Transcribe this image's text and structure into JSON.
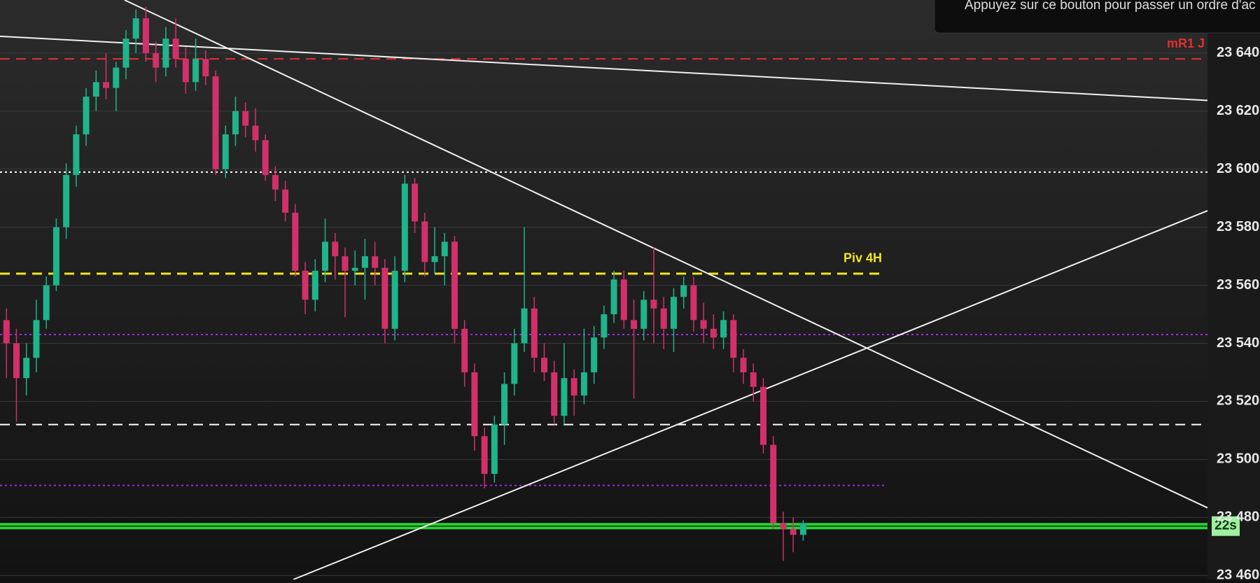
{
  "chart_data": {
    "type": "candlestick",
    "candles": [
      [
        23548,
        23552,
        23528,
        23540
      ],
      [
        23540,
        23545,
        23513,
        23528
      ],
      [
        23528,
        23540,
        23522,
        23535
      ],
      [
        23535,
        23555,
        23530,
        23548
      ],
      [
        23548,
        23563,
        23545,
        23560
      ],
      [
        23560,
        23583,
        23558,
        23580
      ],
      [
        23580,
        23602,
        23576,
        23598
      ],
      [
        23598,
        23615,
        23594,
        23612
      ],
      [
        23612,
        23628,
        23608,
        23625
      ],
      [
        23625,
        23634,
        23620,
        23630
      ],
      [
        23630,
        23640,
        23624,
        23628
      ],
      [
        23628,
        23637,
        23620,
        23635
      ],
      [
        23635,
        23648,
        23631,
        23645
      ],
      [
        23645,
        23655,
        23640,
        23652
      ],
      [
        23652,
        23656,
        23637,
        23640
      ],
      [
        23640,
        23644,
        23630,
        23635
      ],
      [
        23635,
        23649,
        23632,
        23645
      ],
      [
        23645,
        23652,
        23635,
        23638
      ],
      [
        23638,
        23642,
        23626,
        23630
      ],
      [
        23630,
        23645,
        23627,
        23638
      ],
      [
        23638,
        23641,
        23629,
        23632
      ],
      [
        23632,
        23634,
        23598,
        23600
      ],
      [
        23600,
        23615,
        23597,
        23612
      ],
      [
        23612,
        23625,
        23608,
        23620
      ],
      [
        23620,
        23623,
        23611,
        23615
      ],
      [
        23615,
        23621,
        23606,
        23610
      ],
      [
        23610,
        23612,
        23596,
        23598
      ],
      [
        23598,
        23601,
        23589,
        23593
      ],
      [
        23593,
        23596,
        23582,
        23585
      ],
      [
        23585,
        23588,
        23563,
        23565
      ],
      [
        23565,
        23568,
        23550,
        23555
      ],
      [
        23555,
        23569,
        23551,
        23565
      ],
      [
        23565,
        23583,
        23561,
        23575
      ],
      [
        23575,
        23578,
        23562,
        23570
      ],
      [
        23570,
        23573,
        23549,
        23565
      ],
      [
        23565,
        23572,
        23560,
        23566
      ],
      [
        23566,
        23576,
        23555,
        23570
      ],
      [
        23570,
        23575,
        23560,
        23566
      ],
      [
        23566,
        23569,
        23540,
        23545
      ],
      [
        23545,
        23570,
        23541,
        23565
      ],
      [
        23565,
        23598,
        23561,
        23595
      ],
      [
        23595,
        23597,
        23578,
        23582
      ],
      [
        23582,
        23585,
        23563,
        23568
      ],
      [
        23568,
        23580,
        23564,
        23570
      ],
      [
        23570,
        23578,
        23560,
        23575
      ],
      [
        23575,
        23577,
        23540,
        23545
      ],
      [
        23545,
        23548,
        23525,
        23530
      ],
      [
        23530,
        23533,
        23503,
        23508
      ],
      [
        23508,
        23511,
        23490,
        23495
      ],
      [
        23495,
        23515,
        23492,
        23512
      ],
      [
        23512,
        23530,
        23505,
        23526
      ],
      [
        23526,
        23545,
        23522,
        23540
      ],
      [
        23540,
        23580,
        23537,
        23552
      ],
      [
        23552,
        23556,
        23530,
        23535
      ],
      [
        23535,
        23540,
        23527,
        23530
      ],
      [
        23530,
        23534,
        23512,
        23515
      ],
      [
        23515,
        23540,
        23512,
        23528
      ],
      [
        23528,
        23531,
        23515,
        23522
      ],
      [
        23522,
        23545,
        23519,
        23530
      ],
      [
        23530,
        23546,
        23526,
        23542
      ],
      [
        23542,
        23553,
        23538,
        23550
      ],
      [
        23550,
        23565,
        23547,
        23562
      ],
      [
        23562,
        23565,
        23545,
        23548
      ],
      [
        23548,
        23555,
        23521,
        23545
      ],
      [
        23545,
        23558,
        23541,
        23555
      ],
      [
        23555,
        23573,
        23540,
        23552
      ],
      [
        23552,
        23556,
        23538,
        23545
      ],
      [
        23545,
        23559,
        23537,
        23556
      ],
      [
        23556,
        23563,
        23552,
        23560
      ],
      [
        23560,
        23563,
        23544,
        23548
      ],
      [
        23548,
        23554,
        23540,
        23545
      ],
      [
        23545,
        23550,
        23538,
        23542
      ],
      [
        23542,
        23551,
        23538,
        23548
      ],
      [
        23548,
        23550,
        23530,
        23535
      ],
      [
        23535,
        23538,
        23526,
        23530
      ],
      [
        23530,
        23533,
        23520,
        23525
      ],
      [
        23525,
        23528,
        23502,
        23505
      ],
      [
        23505,
        23508,
        23476,
        23478
      ],
      [
        23478,
        23482,
        23465,
        23476
      ],
      [
        23476,
        23480,
        23468,
        23474
      ],
      [
        23474,
        23479,
        23472,
        23478
      ]
    ],
    "up_color": "#1fb48a",
    "down_color": "#d2306a",
    "xlim": [
      -0.65,
      120.6
    ],
    "ylim": [
      23458.6,
      23658.3
    ],
    "yticks": [
      {
        "value": 23460,
        "label": "23 460"
      },
      {
        "value": 23480,
        "label": "23 480"
      },
      {
        "value": 23500,
        "label": "23 500"
      },
      {
        "value": 23520,
        "label": "23 520"
      },
      {
        "value": 23540,
        "label": "23 540"
      },
      {
        "value": 23560,
        "label": "23 560"
      },
      {
        "value": 23580,
        "label": "23 580"
      },
      {
        "value": 23600,
        "label": "23 600"
      },
      {
        "value": 23620,
        "label": "23 620"
      },
      {
        "value": 23640,
        "label": "23 640"
      }
    ],
    "grid": true,
    "levels": [
      {
        "price": 23638,
        "color": "#e03030",
        "style": "dashed",
        "label": "mR1 J"
      },
      {
        "price": 23599,
        "color": "#ffffff",
        "style": "dotted"
      },
      {
        "price": 23564,
        "color": "#f2e51e",
        "style": "dashed",
        "end": 88.2,
        "label": "Piv 4H"
      },
      {
        "price": 23543,
        "color": "#9b2de0",
        "style": "dotted"
      },
      {
        "price": 23512,
        "color": "#ffffff",
        "style": "dashed"
      },
      {
        "price": 23491,
        "color": "#9b2de0",
        "style": "dotted",
        "end": 88.2
      },
      {
        "price": 23477,
        "color": "#2fd13a",
        "style": "solid",
        "label": "22s"
      }
    ],
    "trendlines": [
      {
        "from": [
          -0.65,
          23645.8
        ],
        "to": [
          120.6,
          23623.7
        ]
      },
      {
        "from": [
          11.85,
          23658.3
        ],
        "to": [
          120.6,
          23483.3
        ]
      },
      {
        "from": [
          28.8,
          23458.6
        ],
        "to": [
          120.6,
          23585.7
        ]
      }
    ]
  },
  "tooltip": "Appuyez sur ce bouton pour passer un ordre d'ac"
}
